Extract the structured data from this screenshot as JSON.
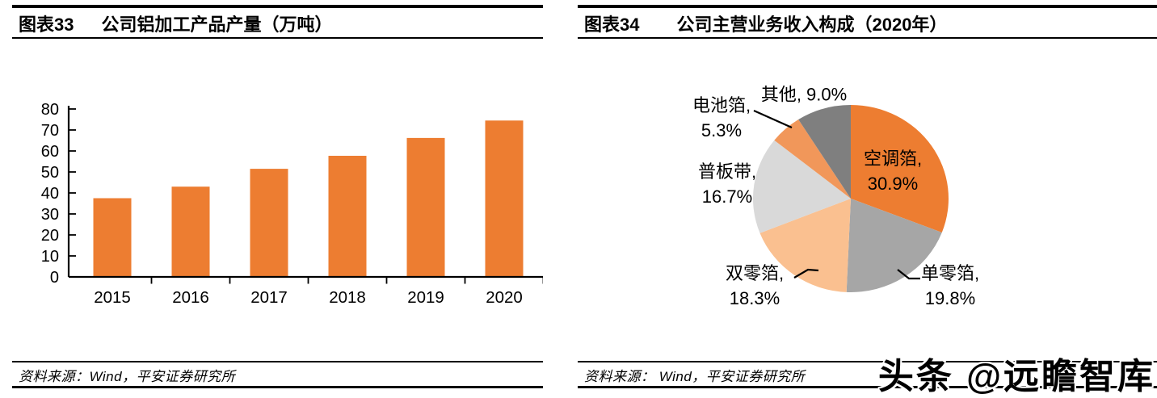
{
  "figure33": {
    "fig_label": "图表33",
    "title": "公司铝加工产品产量（万吨）",
    "source": "资料来源：Wind，平安证券研究所"
  },
  "figure34": {
    "fig_label": "图表34",
    "title": "公司主营业务收入构成（2020年）",
    "source": "资料来源： Wind，平安证券研究所"
  },
  "watermark": "头条 @远瞻智库",
  "colors": {
    "bar_orange": "#ED7D31",
    "axis_black": "#000000",
    "line_black": "#000000"
  },
  "chart_data": [
    {
      "type": "bar",
      "title": "公司铝加工产品产量（万吨）",
      "categories": [
        "2015",
        "2016",
        "2017",
        "2018",
        "2019",
        "2020"
      ],
      "values": [
        37.5,
        43.0,
        51.5,
        57.7,
        66.2,
        74.5
      ],
      "xlabel": "",
      "ylabel": "",
      "ylim": [
        0,
        80
      ],
      "yticks": [
        0,
        10,
        20,
        30,
        40,
        50,
        60,
        70,
        80
      ],
      "grid": false,
      "legend": "none",
      "bar_color": "#ED7D31"
    },
    {
      "type": "pie",
      "title": "公司主营业务收入构成（2020年）",
      "start_angle_deg": 0,
      "direction": "clockwise",
      "slices": [
        {
          "label": "空调箔",
          "value": 30.9,
          "color": "#ED7D31",
          "label_position": "inside"
        },
        {
          "label": "单零箔",
          "value": 19.8,
          "color": "#A6A6A6",
          "label_position": "outside"
        },
        {
          "label": "双零箔",
          "value": 18.3,
          "color": "#FAC090",
          "label_position": "outside"
        },
        {
          "label": "普板带",
          "value": 16.7,
          "color": "#D9D9D9",
          "label_position": "outside"
        },
        {
          "label": "电池箔",
          "value": 5.3,
          "color": "#F1975A",
          "label_position": "outside"
        },
        {
          "label": "其他",
          "value": 9.0,
          "color": "#7F7F7F",
          "label_position": "outside"
        }
      ]
    }
  ]
}
